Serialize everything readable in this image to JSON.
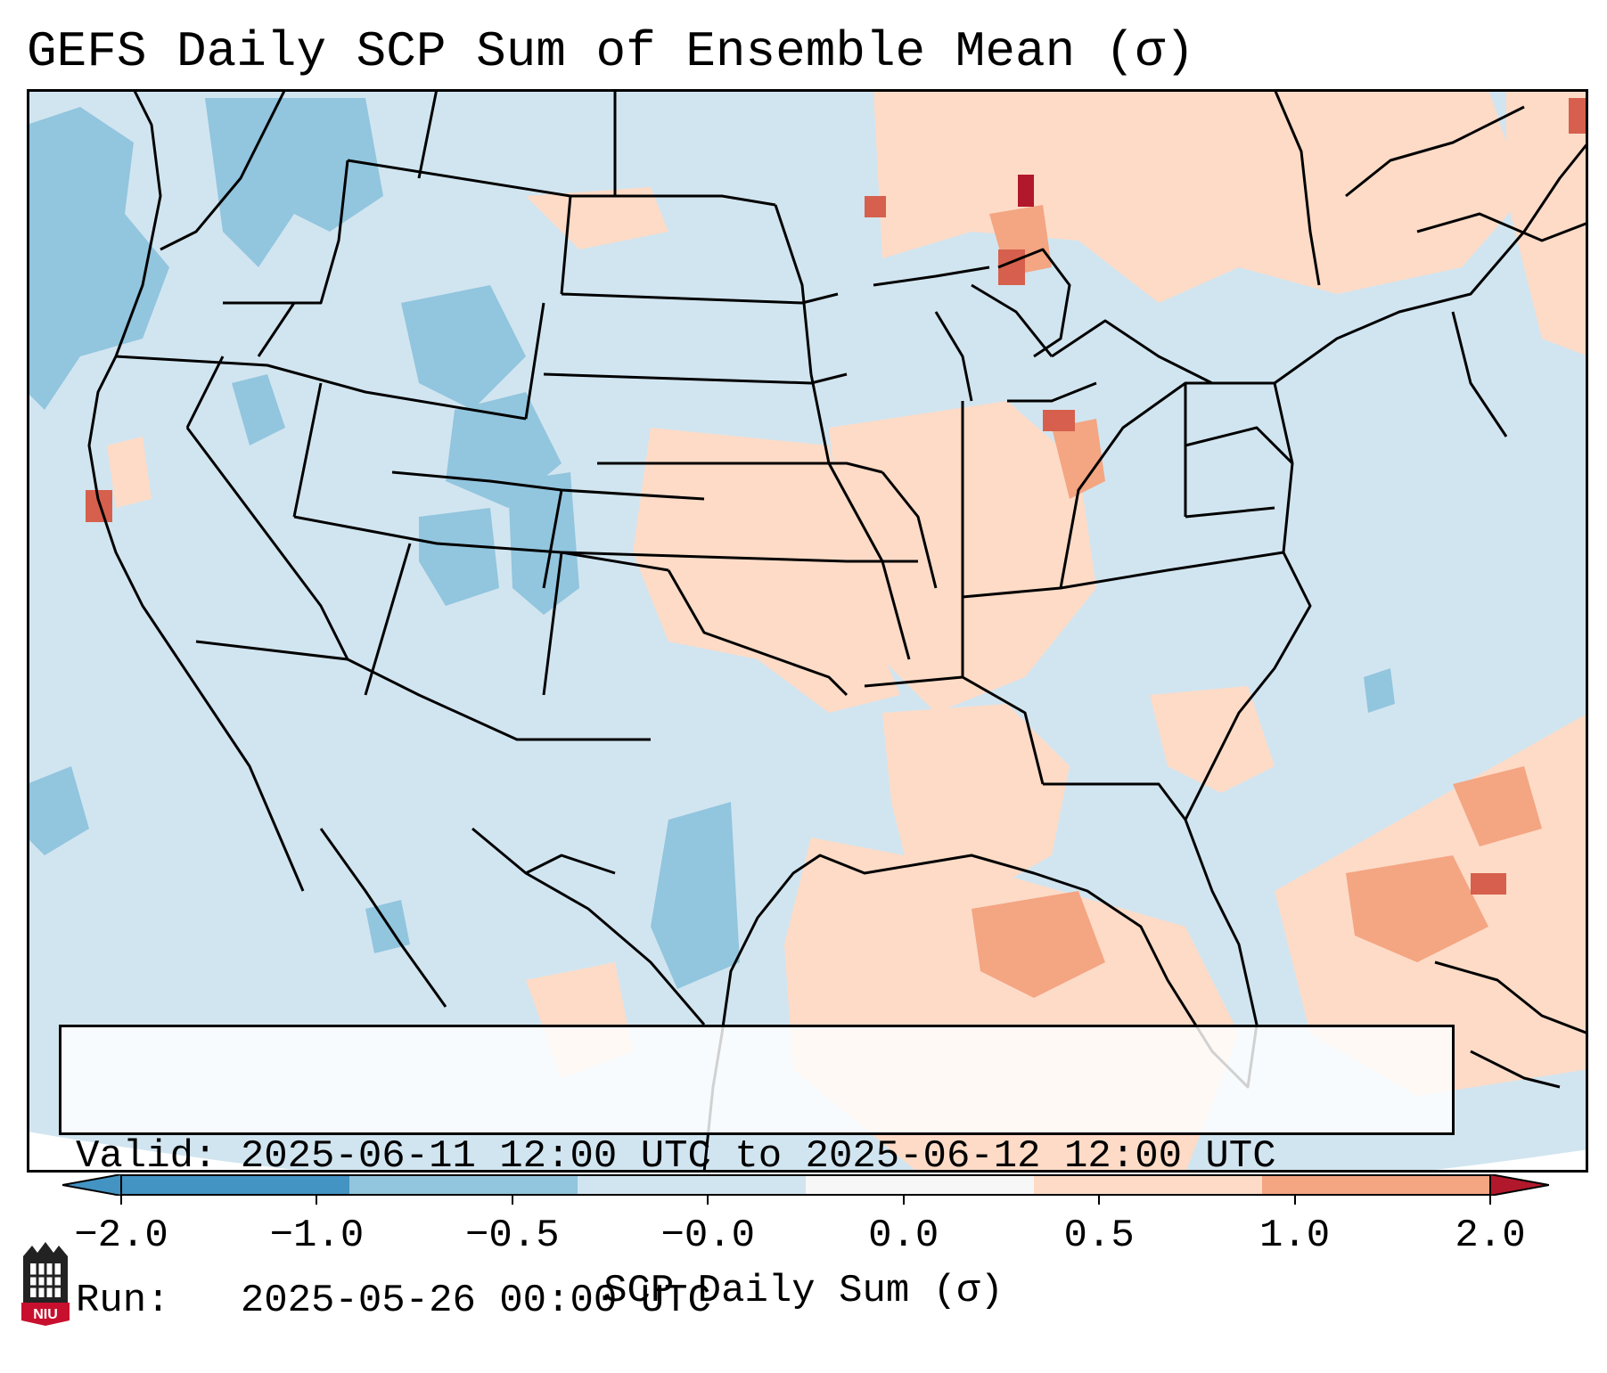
{
  "title": "GEFS Daily SCP Sum of Ensemble Mean (σ)",
  "info": {
    "valid_line": "Valid: 2025-06-11 12:00 UTC to 2025-06-12 12:00 UTC",
    "run_line": "Run:   2025-05-26 00:00 UTC"
  },
  "colorbar": {
    "label": "SCP Daily Sum (σ)",
    "ticks": [
      "−2.0",
      "−1.0",
      "−0.5",
      "−0.0",
      "0.0",
      "0.5",
      "1.0",
      "2.0"
    ],
    "colors": [
      "#4393c3",
      "#92c5de",
      "#d1e5f0",
      "#f7f7f7",
      "#fddbc7",
      "#f4a582",
      "#d6604d",
      "#b2182b"
    ]
  },
  "logo": {
    "text": "NIU"
  }
}
